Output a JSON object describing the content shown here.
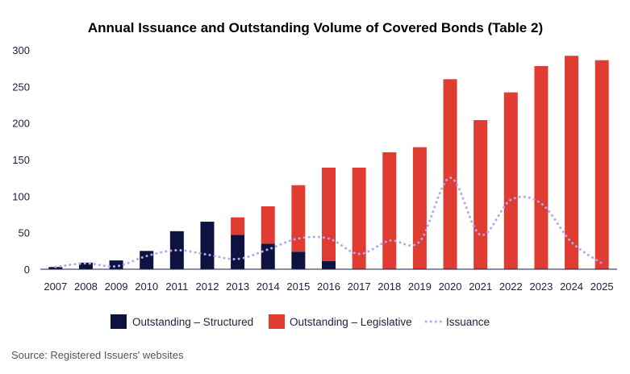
{
  "chart_data": {
    "type": "bar",
    "stacked": true,
    "title": "Annual Issuance and Outstanding Volume of Covered Bonds (Table 2)",
    "xlabel": "",
    "ylabel": "",
    "ylim": [
      0,
      300
    ],
    "yticks": [
      "0",
      "50",
      "100",
      "150",
      "200",
      "250",
      "300"
    ],
    "categories": [
      "2007",
      "2008",
      "2009",
      "2010",
      "2011",
      "2012",
      "2013",
      "2014",
      "2015",
      "2016",
      "2017",
      "2018",
      "2019",
      "2020",
      "2021",
      "2022",
      "2023",
      "2024",
      "2025"
    ],
    "series": [
      {
        "name": "Outstanding – Structured",
        "kind": "bar",
        "color": "#0d1240",
        "values": [
          3,
          9,
          12,
          25,
          52,
          65,
          47,
          35,
          24,
          11,
          0,
          0,
          0,
          0,
          0,
          0,
          0,
          0,
          0
        ]
      },
      {
        "name": "Outstanding – Legislative",
        "kind": "bar",
        "color": "#e03c31",
        "values": [
          0,
          0,
          0,
          0,
          0,
          0,
          24,
          51,
          91,
          128,
          139,
          160,
          167,
          260,
          204,
          242,
          278,
          292,
          286
        ]
      },
      {
        "name": "Issuance",
        "kind": "line",
        "style": "dotted",
        "color": "#b3a8ec",
        "values": [
          3,
          8,
          4,
          18,
          26,
          20,
          14,
          27,
          42,
          42,
          21,
          39,
          38,
          125,
          47,
          95,
          90,
          37,
          8
        ]
      }
    ],
    "legend": [
      "Outstanding – Structured",
      "Outstanding – Legislative",
      "Issuance"
    ],
    "legend_position": "bottom",
    "grid": false
  },
  "footer": {
    "source": "Source: Registered Issuers' websites"
  }
}
